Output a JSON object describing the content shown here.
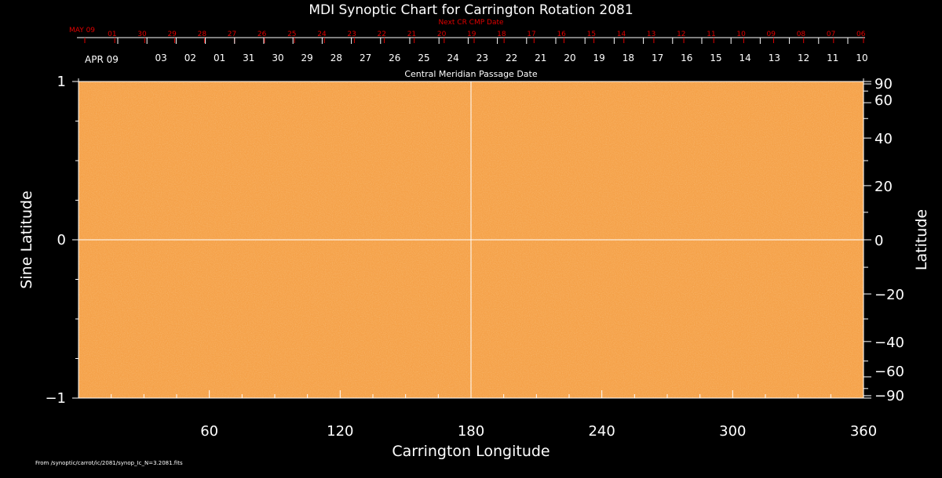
{
  "chart_data": {
    "type": "heatmap",
    "title": "MDI Synoptic Chart for Carrington Rotation 2081",
    "xlabel": "Carrington Longitude",
    "ylabel_left": "Sine Latitude",
    "ylabel_right": "Latitude",
    "xlim": [
      0,
      360
    ],
    "ylim": [
      -1,
      1
    ],
    "x_ticks": [
      60,
      120,
      180,
      240,
      300,
      360
    ],
    "y_left_ticks": [
      {
        "value": 1,
        "label": "1"
      },
      {
        "value": 0,
        "label": "0"
      },
      {
        "value": -1,
        "label": "−1"
      }
    ],
    "y_right_ticks": [
      {
        "value": 90,
        "label": "90"
      },
      {
        "value": 60,
        "label": "60"
      },
      {
        "value": 40,
        "label": "40"
      },
      {
        "value": 20,
        "label": "20"
      },
      {
        "value": 0,
        "label": "0"
      },
      {
        "value": -20,
        "label": "−20"
      },
      {
        "value": -40,
        "label": "−40"
      },
      {
        "value": -60,
        "label": "−60"
      },
      {
        "value": -90,
        "label": "−90"
      }
    ],
    "cmp_axis_label": "Central Meridian Passage Date",
    "cmp_dates": [
      "APR 09",
      "03",
      "02",
      "01",
      "31",
      "30",
      "29",
      "28",
      "27",
      "26",
      "25",
      "24",
      "23",
      "22",
      "21",
      "20",
      "19",
      "18",
      "17",
      "16",
      "15",
      "14",
      "13",
      "12",
      "11",
      "10"
    ],
    "next_cr_label": "Next CR CMP Date",
    "next_cr_dates": [
      "MAY 09",
      "01",
      "30",
      "29",
      "28",
      "27",
      "26",
      "25",
      "24",
      "23",
      "22",
      "21",
      "20",
      "19",
      "18",
      "17",
      "16",
      "15",
      "14",
      "13",
      "12",
      "11",
      "10",
      "09",
      "08",
      "07",
      "06"
    ],
    "field_color": "#f5a24a",
    "label_color": "#ffffff",
    "next_cr_color": "#e00000",
    "grid_lines": {
      "longitude": 180,
      "sine_latitude": 0
    }
  },
  "footer": {
    "source": "From /synoptic/carrot/ic/2081/synop_Ic_N=3.2081.fits"
  }
}
